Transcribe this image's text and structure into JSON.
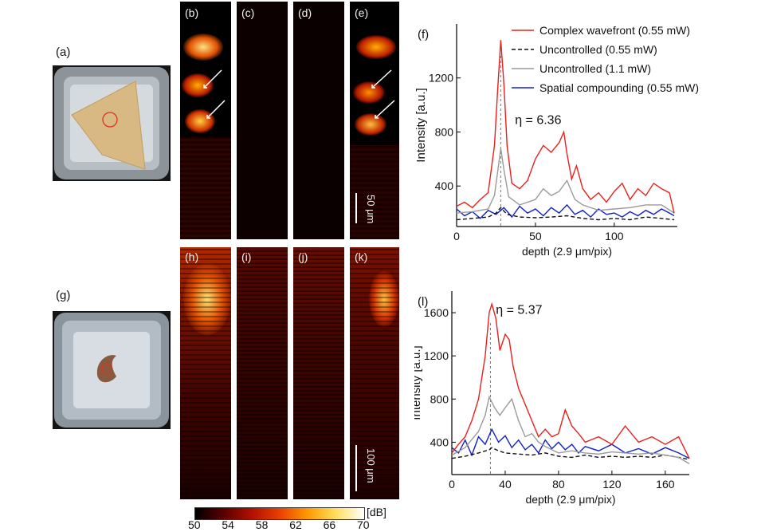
{
  "photos": {
    "a": {
      "label": "(a)"
    },
    "g": {
      "label": "(g)"
    }
  },
  "panels_top": [
    {
      "label": "(b)"
    },
    {
      "label": "(c)"
    },
    {
      "label": "(d)"
    },
    {
      "label": "(e)"
    }
  ],
  "panels_bottom": [
    {
      "label": "(h)"
    },
    {
      "label": "(i)"
    },
    {
      "label": "(j)"
    },
    {
      "label": "(k)"
    }
  ],
  "scalebars": {
    "top": "50 μm",
    "bottom": "100 μm"
  },
  "colorbar": {
    "ticks": [
      "50",
      "54",
      "58",
      "62",
      "66",
      "70"
    ],
    "unit": "[dB]",
    "colors": [
      "#000000",
      "#5a0000",
      "#b01000",
      "#e84000",
      "#ff9a00",
      "#ffe060",
      "#ffffff"
    ]
  },
  "legend": [
    {
      "name": "Complex wavefront (0.55 mW)",
      "color": "#e8201c",
      "dash": false
    },
    {
      "name": "Uncontrolled (0.55 mW)",
      "color": "#111111",
      "dash": true
    },
    {
      "name": "Uncontrolled (1.1 mW)",
      "color": "#9a9a9a",
      "dash": false
    },
    {
      "name": "Spatial compounding (0.55 mW)",
      "color": "#1020c8",
      "dash": false
    }
  ],
  "chart_data": [
    {
      "type": "line",
      "panel_label": "(f)",
      "xlabel": "depth (2.9 μm/pix)",
      "ylabel": "Intensity [a.u.]",
      "xlim": [
        0,
        140
      ],
      "ylim": [
        100,
        1600
      ],
      "xticks": [
        0,
        50,
        100
      ],
      "yticks": [
        400,
        800,
        1200
      ],
      "annotation": {
        "text": "η = 6.36",
        "x": 37,
        "y": 860
      },
      "marker_x": 28,
      "series": [
        {
          "name": "Complex wavefront (0.55 mW)",
          "color": "#e8201c",
          "x": [
            0,
            5,
            10,
            15,
            20,
            24,
            26,
            28,
            30,
            32,
            35,
            40,
            45,
            50,
            55,
            60,
            65,
            68,
            70,
            73,
            76,
            80,
            85,
            90,
            95,
            100,
            105,
            110,
            115,
            120,
            125,
            130,
            135,
            138
          ],
          "y": [
            250,
            280,
            240,
            300,
            350,
            700,
            1100,
            1480,
            1150,
            700,
            420,
            380,
            440,
            600,
            700,
            650,
            720,
            800,
            640,
            450,
            550,
            380,
            300,
            350,
            280,
            360,
            420,
            300,
            380,
            330,
            420,
            380,
            350,
            200
          ]
        },
        {
          "name": "Uncontrolled (0.55 mW)",
          "color": "#111111",
          "dash": true,
          "x": [
            0,
            10,
            20,
            25,
            28,
            32,
            40,
            50,
            60,
            70,
            80,
            90,
            100,
            110,
            120,
            130,
            138
          ],
          "y": [
            150,
            160,
            170,
            200,
            240,
            190,
            170,
            165,
            170,
            180,
            160,
            150,
            160,
            150,
            170,
            160,
            150
          ]
        },
        {
          "name": "Uncontrolled (1.1 mW)",
          "color": "#9a9a9a",
          "x": [
            0,
            10,
            20,
            24,
            26,
            28,
            30,
            33,
            40,
            50,
            55,
            60,
            65,
            70,
            75,
            80,
            90,
            100,
            110,
            120,
            130,
            138
          ],
          "y": [
            200,
            210,
            230,
            330,
            500,
            680,
            520,
            320,
            260,
            300,
            380,
            330,
            360,
            440,
            300,
            260,
            220,
            230,
            240,
            260,
            260,
            200
          ]
        },
        {
          "name": "Spatial compounding (0.55 mW)",
          "color": "#1020c8",
          "x": [
            0,
            5,
            10,
            15,
            20,
            25,
            30,
            35,
            40,
            45,
            50,
            55,
            60,
            65,
            70,
            75,
            80,
            85,
            90,
            95,
            100,
            105,
            110,
            115,
            120,
            125,
            130,
            135,
            138
          ],
          "y": [
            230,
            180,
            210,
            160,
            220,
            190,
            240,
            170,
            250,
            200,
            230,
            180,
            240,
            200,
            260,
            190,
            220,
            170,
            230,
            190,
            200,
            170,
            210,
            180,
            220,
            190,
            230,
            200,
            180
          ]
        }
      ]
    },
    {
      "type": "line",
      "panel_label": "(l)",
      "xlabel": "depth (2.9 μm/pix)",
      "ylabel": "Intensity [a.u.]",
      "xlim": [
        0,
        178
      ],
      "ylim": [
        100,
        1800
      ],
      "xticks": [
        0,
        40,
        80,
        120,
        160
      ],
      "yticks": [
        400,
        800,
        1200,
        1600
      ],
      "annotation": {
        "text": "η = 5.37",
        "x": 33,
        "y": 1590
      },
      "marker_x": 29,
      "series": [
        {
          "name": "Complex wavefront (0.55 mW)",
          "color": "#e8201c",
          "x": [
            0,
            5,
            10,
            15,
            20,
            25,
            28,
            30,
            33,
            36,
            40,
            43,
            46,
            50,
            55,
            60,
            65,
            70,
            75,
            80,
            85,
            90,
            95,
            100,
            110,
            120,
            130,
            140,
            150,
            160,
            170,
            178
          ],
          "y": [
            300,
            380,
            450,
            600,
            800,
            1200,
            1600,
            1680,
            1550,
            1250,
            1400,
            1350,
            1100,
            900,
            750,
            600,
            450,
            520,
            450,
            480,
            700,
            550,
            480,
            400,
            450,
            380,
            550,
            400,
            450,
            380,
            450,
            250
          ]
        },
        {
          "name": "Uncontrolled (0.55 mW)",
          "color": "#111111",
          "dash": true,
          "x": [
            0,
            10,
            20,
            28,
            30,
            35,
            40,
            50,
            60,
            70,
            80,
            90,
            100,
            110,
            120,
            130,
            140,
            150,
            160,
            170,
            178
          ],
          "y": [
            250,
            270,
            300,
            330,
            350,
            320,
            300,
            290,
            280,
            300,
            270,
            260,
            280,
            260,
            270,
            260,
            270,
            260,
            280,
            260,
            240
          ]
        },
        {
          "name": "Uncontrolled (1.1 mW)",
          "color": "#9a9a9a",
          "x": [
            0,
            10,
            20,
            25,
            28,
            32,
            36,
            40,
            45,
            50,
            55,
            60,
            65,
            70,
            75,
            80,
            90,
            100,
            110,
            120,
            130,
            140,
            150,
            160,
            170,
            178
          ],
          "y": [
            280,
            350,
            500,
            650,
            820,
            720,
            650,
            720,
            800,
            600,
            450,
            480,
            400,
            360,
            330,
            300,
            320,
            300,
            290,
            310,
            300,
            290,
            300,
            280,
            260,
            200
          ]
        },
        {
          "name": "Spatial compounding (0.55 mW)",
          "color": "#1020c8",
          "x": [
            0,
            5,
            10,
            15,
            20,
            25,
            30,
            35,
            40,
            45,
            50,
            55,
            60,
            65,
            70,
            75,
            80,
            85,
            90,
            95,
            100,
            110,
            120,
            130,
            140,
            150,
            160,
            170,
            178
          ],
          "y": [
            350,
            300,
            420,
            280,
            450,
            380,
            520,
            400,
            460,
            350,
            420,
            330,
            380,
            300,
            420,
            340,
            400,
            330,
            380,
            300,
            360,
            320,
            380,
            300,
            340,
            290,
            350,
            300,
            250
          ]
        }
      ]
    }
  ]
}
